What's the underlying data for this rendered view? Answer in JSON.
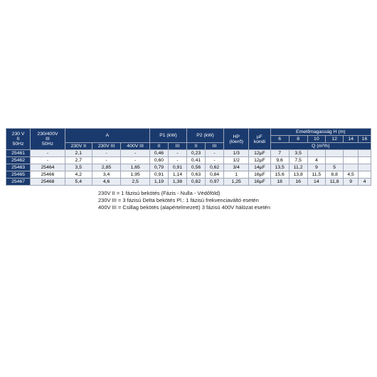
{
  "table": {
    "header_bg": "#1a3a6e",
    "header_fg": "#ffffff",
    "row_odd_bg": "#e8ecf3",
    "row_even_bg": "#ffffff",
    "border_color": "#a0a8b8",
    "headers": {
      "c1": "230 V\nII\n50Hz",
      "c2": "230/400V\nIII\n50Hz",
      "A": "A",
      "A_sub": [
        "230V II",
        "230V III",
        "400V III"
      ],
      "P1": "P1 (kW)",
      "P1_sub": [
        "II",
        "III"
      ],
      "P2": "P2 (kW)",
      "P2_sub": [
        "II",
        "III"
      ],
      "HP": "HP\n(lóerő)",
      "uF": "µF\nkondi",
      "Emelo": "Emelőmagasság H (m)",
      "H_vals": [
        "6",
        "8",
        "10",
        "12",
        "14",
        "16"
      ],
      "Q": "Q (m³/h)"
    },
    "rows": [
      {
        "c1": "25461",
        "c2": "-",
        "A": [
          "2,1",
          "-",
          "-"
        ],
        "P1": [
          "0,46",
          "-"
        ],
        "P2": [
          "0,23",
          "-"
        ],
        "hp": "1/3",
        "uf": "12µF",
        "q": [
          "7",
          "3,5",
          "",
          "",
          "",
          ""
        ]
      },
      {
        "c1": "25462",
        "c2": "-",
        "A": [
          "2,7",
          "-",
          "-"
        ],
        "P1": [
          "0,60",
          "-"
        ],
        "P2": [
          "0,41",
          "-"
        ],
        "hp": "1/2",
        "uf": "12µF",
        "q": [
          "9,6",
          "7,5",
          "4",
          "",
          "",
          ""
        ]
      },
      {
        "c1": "25463",
        "c2": "25464",
        "A": [
          "3,5",
          "2,85",
          "1,65"
        ],
        "P1": [
          "0,79",
          "0,91"
        ],
        "P2": [
          "0,56",
          "0,62"
        ],
        "hp": "3/4",
        "uf": "14µF",
        "q": [
          "13,5",
          "11,2",
          "9",
          "5",
          "",
          ""
        ]
      },
      {
        "c1": "25465",
        "c2": "25466",
        "A": [
          "4,2",
          "3,4",
          "1,95"
        ],
        "P1": [
          "0,91",
          "1,14"
        ],
        "P2": [
          "0,63",
          "0,84"
        ],
        "hp": "1",
        "uf": "16µF",
        "q": [
          "15,6",
          "13,8",
          "11,5",
          "8,8",
          "4,5",
          ""
        ]
      },
      {
        "c1": "25467",
        "c2": "25468",
        "A": [
          "5,4",
          "4,6",
          "2,5"
        ],
        "P1": [
          "1,19",
          "1,38"
        ],
        "P2": [
          "0,82",
          "0,97"
        ],
        "hp": "1,25",
        "uf": "16µF",
        "q": [
          "18",
          "16",
          "14",
          "11,8",
          "9",
          "4"
        ]
      }
    ]
  },
  "notes": [
    "230V II = 1 fázisú bekötés (Fázis - Nulla - Védőföld)",
    "230V III = 3 fázisú Delta bekötés Pl.: 1 fázisú frekvenciaváltó esetén",
    "400V III = Csillag bekötés (alapértelmezett) 3 fázisú 400V hálózat esetén"
  ]
}
